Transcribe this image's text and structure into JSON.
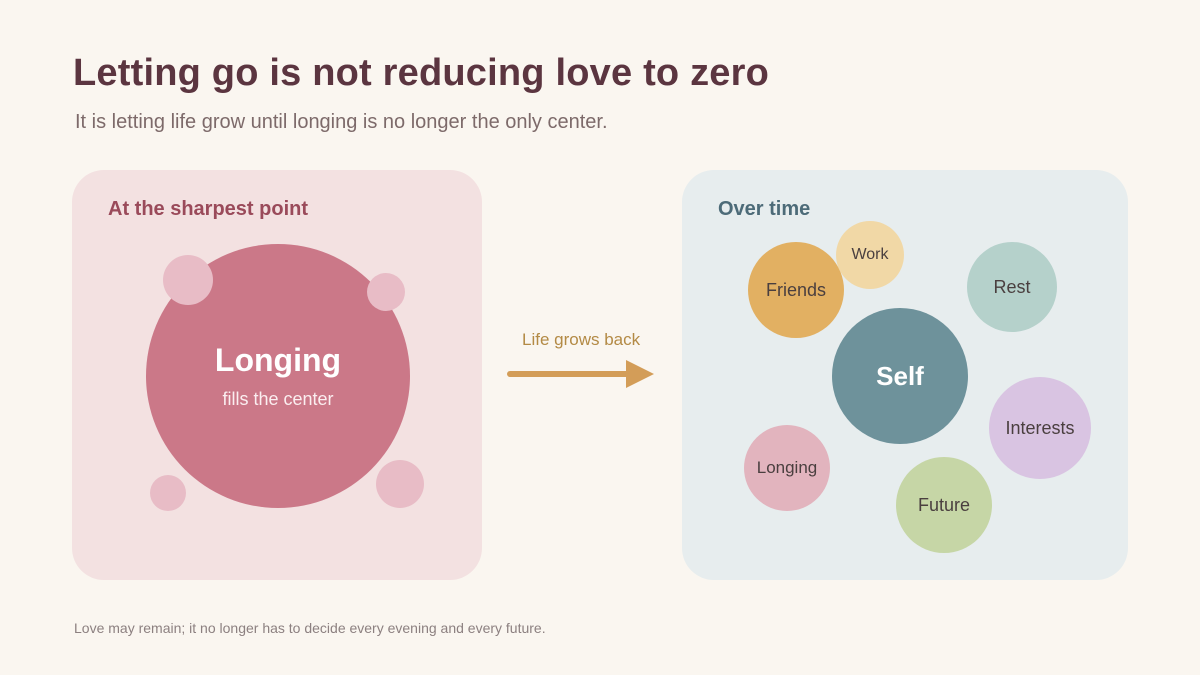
{
  "title": "Letting go is not reducing love to zero",
  "subtitle": "It is letting life grow until longing is no longer the only center.",
  "left_panel": {
    "heading": "At the sharpest point",
    "center_word": "Longing",
    "center_caption": "fills the center"
  },
  "arrow": {
    "label": "Life grows back",
    "color": "#d39d58"
  },
  "right_panel": {
    "heading": "Over time",
    "bubbles": {
      "self": "Self",
      "friends": "Friends",
      "work": "Work",
      "rest": "Rest",
      "interests": "Interests",
      "longing": "Longing",
      "future": "Future"
    }
  },
  "colors": {
    "longing": "#cb7888",
    "self": "#6e929b",
    "friends": "#e2b062",
    "work": "#f1d8a6",
    "rest": "#b5d1cb",
    "interests": "#d9c4e2",
    "longing_small": "#e2b4be",
    "future": "#c6d6a6"
  },
  "footer": "Love may remain; it no longer has to decide every evening and every future."
}
